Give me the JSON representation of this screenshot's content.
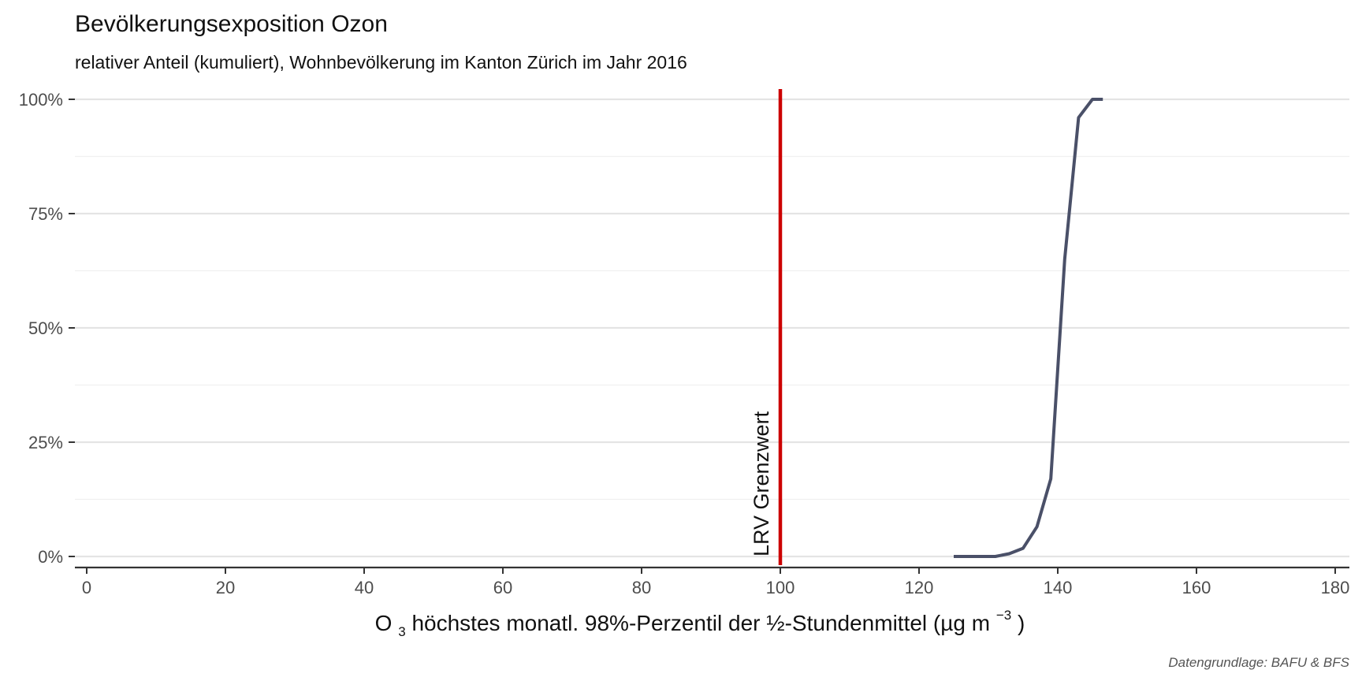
{
  "chart_data": {
    "type": "line",
    "title": "Bevölkerungsexposition Ozon",
    "subtitle": "relativer Anteil (kumuliert), Wohnbevölkerung im Kanton Zürich im Jahr 2016",
    "xlabel": {
      "prefix": "O",
      "subscript": "3",
      "main": " höchstes monatl. 98%-Perzentil der ½-Stundenmittel (µg m",
      "superscript": "−3",
      "suffix": ")"
    },
    "ylabel": "",
    "xlim": [
      0,
      180
    ],
    "ylim": [
      0,
      1
    ],
    "x_ticks": [
      0,
      20,
      40,
      60,
      80,
      100,
      120,
      140,
      160,
      180
    ],
    "x_tick_labels": [
      "0",
      "20",
      "40",
      "60",
      "80",
      "100",
      "120",
      "140",
      "160",
      "180"
    ],
    "y_ticks": [
      0,
      0.25,
      0.5,
      0.75,
      1.0
    ],
    "y_tick_labels": [
      "0%",
      "25%",
      "50%",
      "75%",
      "100%"
    ],
    "grid": true,
    "series": [
      {
        "color": "#4a5068",
        "x": [
          125,
          127,
          129,
          131,
          133,
          135,
          137,
          139,
          141,
          143,
          145,
          146.5
        ],
        "y": [
          0,
          0,
          0,
          0,
          0.006,
          0.018,
          0.065,
          0.17,
          0.65,
          0.96,
          1.0,
          1.0
        ]
      }
    ],
    "reference_line": {
      "x": 100,
      "color": "#cc0000",
      "label": "LRV Grenzwert"
    },
    "caption": "Datengrundlage: BAFU & BFS"
  }
}
